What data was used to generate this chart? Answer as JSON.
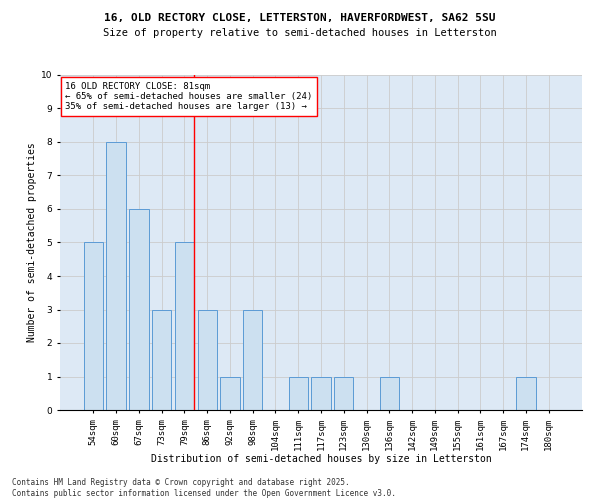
{
  "title_line1": "16, OLD RECTORY CLOSE, LETTERSTON, HAVERFORDWEST, SA62 5SU",
  "title_line2": "Size of property relative to semi-detached houses in Letterston",
  "xlabel": "Distribution of semi-detached houses by size in Letterston",
  "ylabel": "Number of semi-detached properties",
  "categories": [
    "54sqm",
    "60sqm",
    "67sqm",
    "73sqm",
    "79sqm",
    "86sqm",
    "92sqm",
    "98sqm",
    "104sqm",
    "111sqm",
    "117sqm",
    "123sqm",
    "130sqm",
    "136sqm",
    "142sqm",
    "149sqm",
    "155sqm",
    "161sqm",
    "167sqm",
    "174sqm",
    "180sqm"
  ],
  "values": [
    5,
    8,
    6,
    3,
    5,
    3,
    1,
    3,
    0,
    1,
    1,
    1,
    0,
    1,
    0,
    0,
    0,
    0,
    0,
    1,
    0
  ],
  "bar_color": "#cce0f0",
  "bar_edgecolor": "#5b9bd5",
  "subject_line_index": 4,
  "subject_line_color": "red",
  "annotation_text": "16 OLD RECTORY CLOSE: 81sqm\n← 65% of semi-detached houses are smaller (24)\n35% of semi-detached houses are larger (13) →",
  "annotation_box_color": "white",
  "annotation_box_edgecolor": "red",
  "ylim": [
    0,
    10
  ],
  "yticks": [
    0,
    1,
    2,
    3,
    4,
    5,
    6,
    7,
    8,
    9,
    10
  ],
  "grid_color": "#cccccc",
  "background_color": "#dde9f5",
  "footer_line1": "Contains HM Land Registry data © Crown copyright and database right 2025.",
  "footer_line2": "Contains public sector information licensed under the Open Government Licence v3.0.",
  "title_fontsize": 8,
  "subtitle_fontsize": 7.5,
  "axis_label_fontsize": 7,
  "tick_fontsize": 6.5,
  "annotation_fontsize": 6.5,
  "footer_fontsize": 5.5
}
